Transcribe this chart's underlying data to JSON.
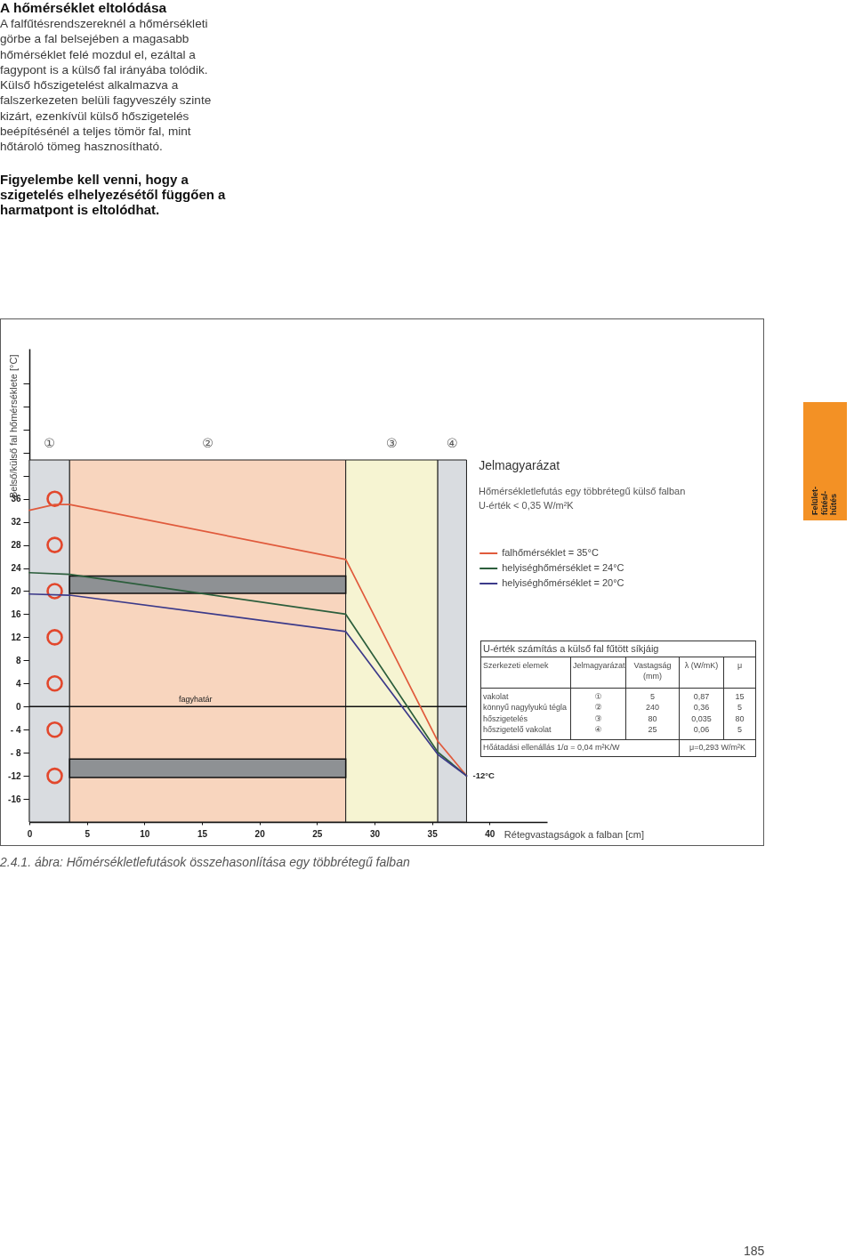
{
  "chart_data": [
    {
      "type": "line",
      "title": "A hőmérséklet eltolódása",
      "subtitle": "A falfűtésrendszereknél a hőmérsékleti görbe a fal belsejében a magasabb hőmérséklet felé mozdul el, ezáltal a fagypont is a külső fal irányába tolódik. Külső hőszigetelést alkalmazva a falszerkezeten belüli fagyveszély szinte kizárt, ezenkívül külső hőszigetelés beépítésénél a teljes tömör fal, mint hőtároló tömeg hasznosítható.",
      "xlabel": "Rétegvastagságok a falban [cm]",
      "ylabel": "Belső/külső fal hőmérséklete [°C]",
      "legend_title": "Jelmagyarázat",
      "xlim": [
        0,
        45
      ],
      "ylim": [
        -20,
        62
      ],
      "xticks": [
        0,
        5,
        10,
        15,
        20,
        25,
        30,
        35,
        40
      ],
      "yticks": [
        -16,
        -12,
        {
          "value": -8,
          "label": "- 8"
        },
        {
          "value": -4,
          "label": "- 4"
        },
        0,
        4,
        8,
        12,
        16,
        20,
        24,
        28,
        32,
        36,
        {
          "value": 40,
          "label": null
        },
        {
          "value": 44,
          "label": null
        },
        {
          "value": 48,
          "label": null
        },
        {
          "value": 52,
          "label": null
        },
        {
          "value": 56,
          "label": null
        }
      ],
      "series": [
        {
          "name": "falhőmérséklet = 35°C",
          "color": "#e05a3c",
          "x": [
            0,
            2.2,
            3.5,
            27.5,
            35.5,
            38
          ],
          "values": [
            34,
            35,
            35,
            25.5,
            -6,
            -12
          ]
        },
        {
          "name": "helyiséghőmérséklet = 24°C",
          "color": "#2c5e3c",
          "x": [
            0,
            3.5,
            27.5,
            35.5,
            38
          ],
          "values": [
            23.2,
            22.9,
            16,
            -7.9,
            -12
          ]
        },
        {
          "name": "helyiséghőmérséklet = 20°C",
          "color": "#3c3a8a",
          "x": [
            0,
            3.5,
            27.5,
            35.5,
            38
          ],
          "values": [
            19.5,
            19.3,
            13,
            -8.3,
            -12
          ]
        }
      ],
      "bands": [
        {
          "axis": "x",
          "from": 0,
          "to": 3.5,
          "label": "①",
          "color": "#d9dce0"
        },
        {
          "axis": "x",
          "from": 3.5,
          "to": 27.5,
          "label": "②",
          "color": "#f8d5be"
        },
        {
          "axis": "x",
          "from": 27.5,
          "to": 35.5,
          "label": "③",
          "color": "#f6f4d2"
        },
        {
          "axis": "x",
          "from": 35.5,
          "to": 38,
          "label": "④",
          "color": "#d9dce0"
        }
      ],
      "ref_lines": [
        {
          "axis": "y",
          "value": 0,
          "label": "fagyhatár",
          "color": "#111111"
        }
      ],
      "annotations": [
        "Figyelembe kell venni, hogy a szigetelés elhelyezésétől függően a harmatpont is eltolódhat.",
        "Hőmérsékletlefutás egy többrétegű külső falban",
        "U-érték < 0,35 W/m²K",
        {
          "text": "-12°C",
          "x": 38,
          "y": -12
        },
        "2.4.1. ábra: Hőmérsékletlefutások összehasonlítása egy többrétegű falban",
        "Felület-fűtés/-hűtés",
        "185"
      ],
      "legend": "top right"
    },
    {
      "type": "other",
      "title": "U-érték számítás a külső fal fűtött síkjáig",
      "annotations": [
        "Szerkezeti elemek",
        "Jelmagyarázat",
        "Vastagság (mm)",
        "λ (W/mK)",
        "μ",
        "vakolat",
        "①",
        "5",
        "0,87",
        "15",
        "könnyű nagylyukú tégla",
        "②",
        "240",
        "0,36",
        "5",
        "hőszigetelés",
        "③",
        "80",
        "0,035",
        "80",
        "hőszigetelő vakolat",
        "④",
        "25",
        "0,06",
        "5",
        "Hőátadási ellenállás 1/α = 0,04 m²K/W",
        "μ=0,293 W/m²K"
      ]
    }
  ]
}
